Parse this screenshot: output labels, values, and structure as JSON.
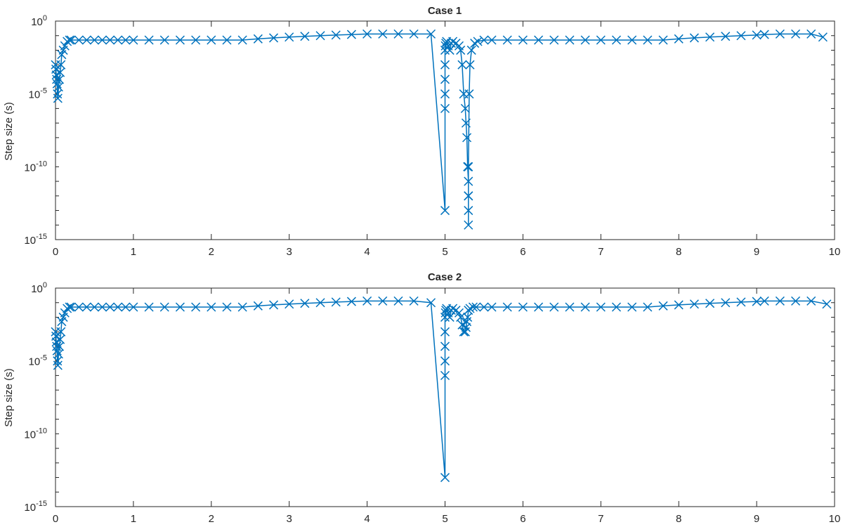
{
  "chart_data": [
    {
      "type": "line",
      "title": "Case 1",
      "xlabel": "",
      "ylabel": "Step size (s)",
      "xlim": [
        0,
        10
      ],
      "ylim": [
        1e-15,
        1
      ],
      "yscale": "log",
      "xticks": [
        "0",
        "1",
        "2",
        "3",
        "4",
        "5",
        "6",
        "7",
        "8",
        "9",
        "10"
      ],
      "yticks": [
        {
          "base": "10",
          "exp": "0"
        },
        {
          "base": "10",
          "exp": "-5"
        },
        {
          "base": "10",
          "exp": "-10"
        },
        {
          "base": "10",
          "exp": "-15"
        }
      ],
      "marker": "x",
      "color": "#0072BD",
      "series": [
        {
          "x": [
            0.0,
            0.005,
            0.01,
            0.015,
            0.02,
            0.025,
            0.03,
            0.04,
            0.05,
            0.06,
            0.07,
            0.08,
            0.1,
            0.12,
            0.15,
            0.18,
            0.2,
            0.3,
            0.4,
            0.5,
            0.6,
            0.7,
            0.8,
            0.9,
            1.0,
            1.2,
            1.4,
            1.6,
            1.8,
            2.0,
            2.2,
            2.4,
            2.6,
            2.8,
            3.0,
            3.2,
            3.4,
            3.6,
            3.8,
            4.0,
            4.2,
            4.4,
            4.6,
            4.82,
            5.0,
            5.0,
            5.0,
            5.0,
            5.0,
            5.0,
            5.005,
            5.01,
            5.02,
            5.04,
            5.06,
            5.08,
            5.1,
            5.14,
            5.18,
            5.2,
            5.22,
            5.24,
            5.26,
            5.27,
            5.28,
            5.29,
            5.3,
            5.3,
            5.3,
            5.3,
            5.3,
            5.3,
            5.31,
            5.32,
            5.34,
            5.38,
            5.42,
            5.5,
            5.6,
            5.8,
            6.0,
            6.2,
            6.4,
            6.6,
            6.8,
            7.0,
            7.2,
            7.4,
            7.6,
            7.8,
            8.0,
            8.2,
            8.4,
            8.6,
            8.8,
            9.0,
            9.1,
            9.3,
            9.5,
            9.7,
            9.85
          ],
          "y": [
            0.001,
            0.0005,
            0.0002,
            0.0001,
            5e-05,
            1e-05,
            5e-06,
            3e-05,
            0.0001,
            0.0003,
            0.001,
            0.005,
            0.01,
            0.02,
            0.04,
            0.05,
            0.05,
            0.05,
            0.05,
            0.05,
            0.05,
            0.05,
            0.05,
            0.05,
            0.05,
            0.05,
            0.05,
            0.05,
            0.05,
            0.05,
            0.05,
            0.05,
            0.06,
            0.07,
            0.08,
            0.09,
            0.1,
            0.11,
            0.12,
            0.13,
            0.13,
            0.13,
            0.13,
            0.13,
            1e-13,
            1e-06,
            1e-05,
            0.0001,
            0.001,
            0.01,
            0.02,
            0.03,
            0.04,
            0.02,
            0.01,
            0.03,
            0.04,
            0.03,
            0.02,
            0.01,
            0.001,
            1e-05,
            1e-06,
            1e-07,
            1e-08,
            1e-10,
            1e-11,
            1e-12,
            1e-13,
            1e-14,
            1e-12,
            1e-10,
            1e-05,
            0.001,
            0.01,
            0.03,
            0.04,
            0.05,
            0.05,
            0.05,
            0.05,
            0.05,
            0.05,
            0.05,
            0.05,
            0.05,
            0.05,
            0.05,
            0.05,
            0.05,
            0.06,
            0.07,
            0.08,
            0.09,
            0.1,
            0.11,
            0.12,
            0.13,
            0.13,
            0.13,
            0.08
          ]
        }
      ]
    },
    {
      "type": "line",
      "title": "Case 2",
      "xlabel": "",
      "ylabel": "Step size (s)",
      "xlim": [
        0,
        10
      ],
      "ylim": [
        1e-15,
        1
      ],
      "yscale": "log",
      "xticks": [
        "0",
        "1",
        "2",
        "3",
        "4",
        "5",
        "6",
        "7",
        "8",
        "9",
        "10"
      ],
      "yticks": [
        {
          "base": "10",
          "exp": "0"
        },
        {
          "base": "10",
          "exp": "-5"
        },
        {
          "base": "10",
          "exp": "-10"
        },
        {
          "base": "10",
          "exp": "-15"
        }
      ],
      "marker": "x",
      "color": "#0072BD",
      "series": [
        {
          "x": [
            0.0,
            0.005,
            0.01,
            0.015,
            0.02,
            0.025,
            0.03,
            0.04,
            0.05,
            0.06,
            0.07,
            0.08,
            0.1,
            0.12,
            0.15,
            0.18,
            0.2,
            0.3,
            0.4,
            0.5,
            0.6,
            0.7,
            0.8,
            0.9,
            1.0,
            1.2,
            1.4,
            1.6,
            1.8,
            2.0,
            2.2,
            2.4,
            2.6,
            2.8,
            3.0,
            3.2,
            3.4,
            3.6,
            3.8,
            4.0,
            4.2,
            4.4,
            4.6,
            4.82,
            5.0,
            5.0,
            5.0,
            5.0,
            5.0,
            5.0,
            5.005,
            5.01,
            5.02,
            5.04,
            5.06,
            5.08,
            5.1,
            5.14,
            5.18,
            5.2,
            5.22,
            5.24,
            5.26,
            5.27,
            5.28,
            5.29,
            5.3,
            5.32,
            5.36,
            5.4,
            5.5,
            5.6,
            5.8,
            6.0,
            6.2,
            6.4,
            6.6,
            6.8,
            7.0,
            7.2,
            7.4,
            7.6,
            7.8,
            8.0,
            8.2,
            8.4,
            8.6,
            8.8,
            9.0,
            9.1,
            9.3,
            9.5,
            9.7,
            9.9
          ],
          "y": [
            0.001,
            0.0005,
            0.0002,
            0.0001,
            5e-05,
            1e-05,
            5e-06,
            3e-05,
            0.0001,
            0.0003,
            0.001,
            0.005,
            0.01,
            0.02,
            0.04,
            0.05,
            0.05,
            0.05,
            0.05,
            0.05,
            0.05,
            0.05,
            0.05,
            0.05,
            0.05,
            0.05,
            0.05,
            0.05,
            0.05,
            0.05,
            0.05,
            0.05,
            0.06,
            0.07,
            0.08,
            0.09,
            0.1,
            0.11,
            0.12,
            0.13,
            0.13,
            0.13,
            0.13,
            0.1,
            1e-13,
            1e-06,
            1e-05,
            0.0001,
            0.001,
            0.01,
            0.02,
            0.03,
            0.04,
            0.02,
            0.01,
            0.03,
            0.04,
            0.03,
            0.02,
            0.01,
            0.003,
            0.001,
            0.001,
            0.002,
            0.005,
            0.01,
            0.03,
            0.04,
            0.05,
            0.05,
            0.05,
            0.05,
            0.05,
            0.05,
            0.05,
            0.05,
            0.05,
            0.05,
            0.05,
            0.05,
            0.05,
            0.05,
            0.06,
            0.07,
            0.08,
            0.09,
            0.1,
            0.11,
            0.12,
            0.13,
            0.13,
            0.13,
            0.13,
            0.08
          ]
        }
      ]
    }
  ]
}
